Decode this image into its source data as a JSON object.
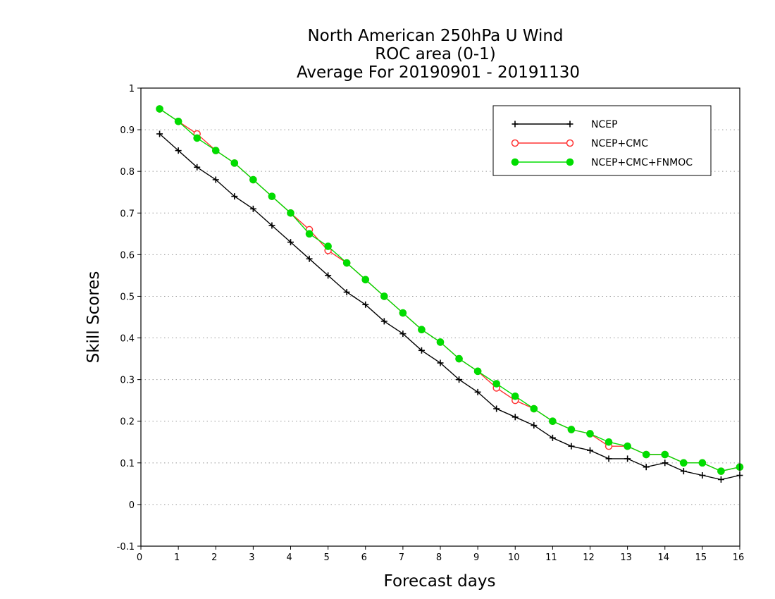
{
  "chart_data": {
    "type": "line",
    "title_lines": [
      "North American 250hPa U Wind",
      "ROC area (0-1)",
      "Average For 20190901 - 20191130"
    ],
    "xlabel": "Forecast days",
    "ylabel": "Skill Scores",
    "xlim": [
      0,
      16
    ],
    "ylim": [
      -0.1,
      1
    ],
    "x_ticks": [
      0,
      1,
      2,
      3,
      4,
      5,
      6,
      7,
      8,
      9,
      10,
      11,
      12,
      13,
      14,
      15,
      16
    ],
    "x_tick_labels": [
      "0",
      "1",
      "2",
      "3",
      "4",
      "5",
      "6",
      "7",
      "8",
      "9",
      "10",
      "11",
      "12",
      "13",
      "14",
      "15",
      "16"
    ],
    "y_ticks": [
      -0.1,
      0,
      0.1,
      0.2,
      0.3,
      0.4,
      0.5,
      0.6,
      0.7,
      0.8,
      0.9,
      1
    ],
    "y_tick_labels": [
      "-0.1",
      "0",
      "0.1",
      "0.2",
      "0.3",
      "0.4",
      "0.5",
      "0.6",
      "0.7",
      "0.8",
      "0.9",
      "1"
    ],
    "grid": "horizontal dotted",
    "legend_position": "top-right",
    "x": [
      0.5,
      1,
      1.5,
      2,
      2.5,
      3,
      3.5,
      4,
      4.5,
      5,
      5.5,
      6,
      6.5,
      7,
      7.5,
      8,
      8.5,
      9,
      9.5,
      10,
      10.5,
      11,
      11.5,
      12,
      12.5,
      13,
      13.5,
      14,
      14.5,
      15,
      15.5,
      16
    ],
    "series": [
      {
        "name": "NCEP",
        "color": "#000000",
        "marker": "plus",
        "values": [
          0.89,
          0.85,
          0.81,
          0.78,
          0.74,
          0.71,
          0.67,
          0.63,
          0.59,
          0.55,
          0.51,
          0.48,
          0.44,
          0.41,
          0.37,
          0.34,
          0.3,
          0.27,
          0.23,
          0.21,
          0.19,
          0.16,
          0.14,
          0.13,
          0.11,
          0.11,
          0.09,
          0.1,
          0.08,
          0.07,
          0.06,
          0.07
        ]
      },
      {
        "name": "NCEP+CMC",
        "color": "#ff3333",
        "marker": "open-circle",
        "values": [
          0.95,
          0.92,
          0.89,
          0.85,
          0.82,
          0.78,
          0.74,
          0.7,
          0.66,
          0.61,
          0.58,
          0.54,
          0.5,
          0.46,
          0.42,
          0.39,
          0.35,
          0.32,
          0.28,
          0.25,
          0.23,
          0.2,
          0.18,
          0.17,
          0.14,
          0.14,
          0.12,
          0.12,
          0.1,
          0.1,
          0.08,
          0.09
        ]
      },
      {
        "name": "NCEP+CMC+FNMOC",
        "color": "#00dd00",
        "marker": "filled-circle",
        "values": [
          0.95,
          0.92,
          0.88,
          0.85,
          0.82,
          0.78,
          0.74,
          0.7,
          0.65,
          0.62,
          0.58,
          0.54,
          0.5,
          0.46,
          0.42,
          0.39,
          0.35,
          0.32,
          0.29,
          0.26,
          0.23,
          0.2,
          0.18,
          0.17,
          0.15,
          0.14,
          0.12,
          0.12,
          0.1,
          0.1,
          0.08,
          0.09
        ]
      }
    ]
  }
}
